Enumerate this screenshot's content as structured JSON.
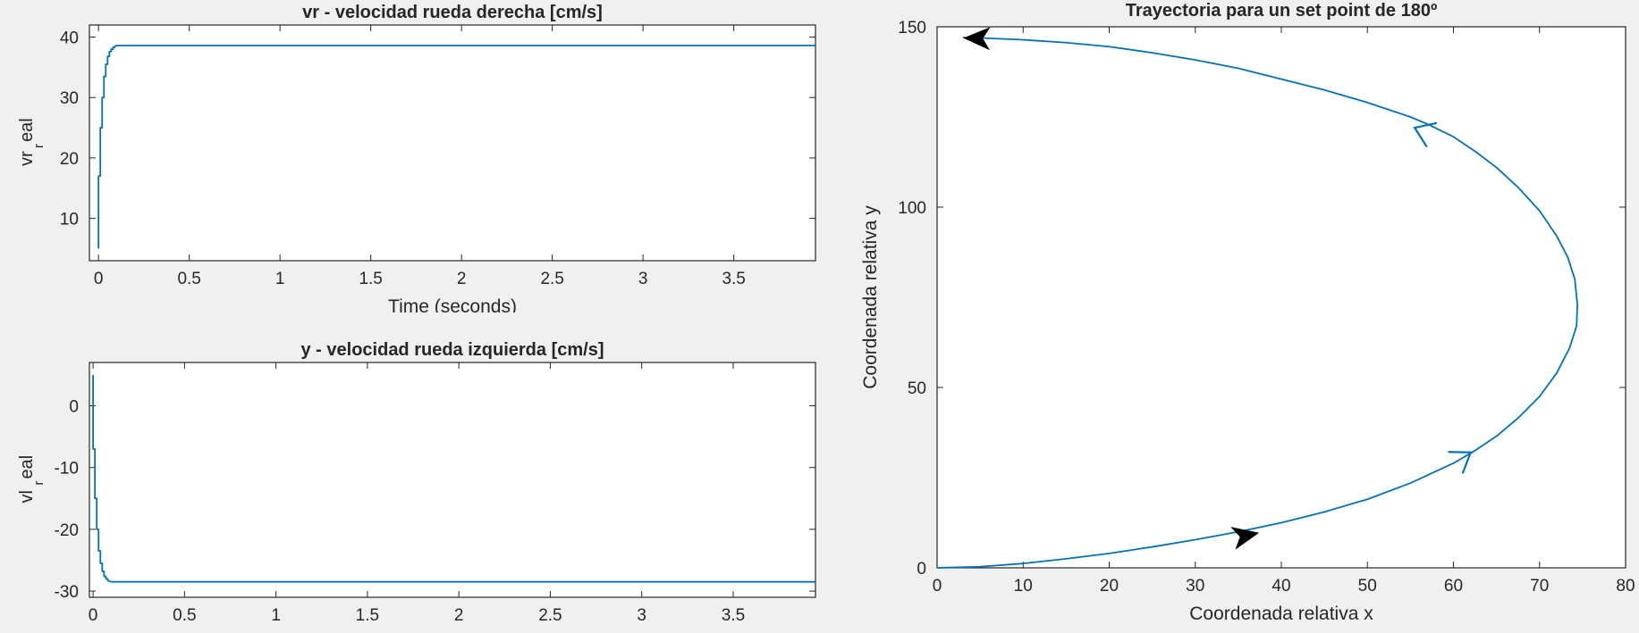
{
  "colors": {
    "line": "#0072BD",
    "arrow_black": "#000000",
    "axis": "#262626",
    "background": "#f0f0f0",
    "plot_bg": "#ffffff"
  },
  "chart_data": [
    {
      "id": "vr",
      "type": "line",
      "title": "vr - velocidad rueda derecha [cm/s]",
      "xlabel": "Time (seconds)",
      "ylabel_main": "vr",
      "ylabel_sub": "r",
      "ylabel_tail": "eal",
      "xlim": [
        -0.05,
        3.95
      ],
      "ylim": [
        3,
        42
      ],
      "xticks": [
        0,
        0.5,
        1,
        1.5,
        2,
        2.5,
        3,
        3.5
      ],
      "xtick_labels": [
        "0",
        "0.5",
        "1",
        "1.5",
        "2",
        "2.5",
        "3",
        "3.5"
      ],
      "yticks": [
        10,
        20,
        30,
        40
      ],
      "ytick_labels": [
        "10",
        "20",
        "30",
        "40"
      ],
      "grid": false,
      "series": [
        {
          "x": [
            0,
            0,
            0.01,
            0.01,
            0.02,
            0.02,
            0.03,
            0.03,
            0.04,
            0.04,
            0.05,
            0.05,
            0.06,
            0.06,
            0.07,
            0.07,
            0.08,
            0.08,
            0.09,
            0.09,
            0.1,
            0.12,
            3.95
          ],
          "y": [
            5,
            17,
            17,
            25,
            25,
            30,
            30,
            33.5,
            33.5,
            35.5,
            35.5,
            36.8,
            36.8,
            37.6,
            37.6,
            38.0,
            38.0,
            38.3,
            38.3,
            38.5,
            38.6,
            38.6,
            38.6
          ]
        }
      ]
    },
    {
      "id": "vl",
      "type": "line",
      "title": "y - velocidad rueda izquierda [cm/s]",
      "xlabel": "",
      "ylabel_main": "vl",
      "ylabel_sub": "r",
      "ylabel_tail": "eal",
      "xlim": [
        -0.02,
        3.95
      ],
      "ylim": [
        -31,
        7
      ],
      "xticks": [
        0,
        0.5,
        1,
        1.5,
        2,
        2.5,
        3,
        3.5
      ],
      "xtick_labels": [
        "0",
        "0.5",
        "1",
        "1.5",
        "2",
        "2.5",
        "3",
        "3.5"
      ],
      "yticks": [
        -30,
        -20,
        -10,
        0
      ],
      "ytick_labels": [
        "-30",
        "-20",
        "-10",
        "0"
      ],
      "grid": false,
      "series": [
        {
          "x": [
            0,
            0,
            0.01,
            0.01,
            0.02,
            0.02,
            0.03,
            0.03,
            0.04,
            0.04,
            0.05,
            0.05,
            0.06,
            0.06,
            0.07,
            0.07,
            0.08,
            0.08,
            0.1,
            0.12,
            3.95
          ],
          "y": [
            5,
            -7,
            -7,
            -15,
            -15,
            -20,
            -20,
            -23.5,
            -23.5,
            -25.5,
            -25.5,
            -26.8,
            -26.8,
            -27.6,
            -27.6,
            -28.0,
            -28.0,
            -28.3,
            -28.5,
            -28.5,
            -28.5
          ]
        }
      ]
    },
    {
      "id": "traj",
      "type": "line",
      "title": "Trayectoria para un set point de 180º",
      "xlabel": "Coordenada relativa x",
      "ylabel": "Coordenada relativa y",
      "xlim": [
        0,
        80
      ],
      "ylim": [
        0,
        150
      ],
      "xticks": [
        0,
        10,
        20,
        30,
        40,
        50,
        60,
        70,
        80
      ],
      "xtick_labels": [
        "0",
        "10",
        "20",
        "30",
        "40",
        "50",
        "60",
        "70",
        "80"
      ],
      "yticks": [
        0,
        50,
        100,
        150
      ],
      "ytick_labels": [
        "0",
        "50",
        "100",
        "150"
      ],
      "grid": false,
      "series": [
        {
          "x": [
            0,
            5,
            10,
            15,
            20,
            25,
            30,
            35,
            40,
            45,
            50,
            55,
            60,
            62.5,
            65,
            67.5,
            70,
            72,
            73.5,
            74.3,
            74.4,
            74.1,
            73.3,
            72,
            70,
            67.5,
            65,
            62.5,
            60,
            57,
            55,
            50,
            45,
            40,
            35,
            30,
            25,
            20,
            15,
            10,
            5,
            3
          ],
          "y": [
            0,
            0.3,
            1.2,
            2.5,
            4,
            5.8,
            7.8,
            10,
            12.5,
            15.5,
            19,
            23.5,
            29,
            32.5,
            36.5,
            41.5,
            47.5,
            54,
            61,
            67,
            73,
            80,
            86,
            92,
            99,
            105.5,
            111,
            115.5,
            119.5,
            123,
            125,
            129,
            132.5,
            135.5,
            138.5,
            140.8,
            142.8,
            144.5,
            145.6,
            146.4,
            146.9,
            147
          ]
        }
      ],
      "arrows": [
        {
          "x": 36,
          "y": 9,
          "color": "black",
          "style": "filled"
        },
        {
          "x": 4.5,
          "y": 146.8,
          "color": "black",
          "style": "filled"
        },
        {
          "x": 55.5,
          "y": 122,
          "color": "line",
          "style": "open"
        },
        {
          "x": 62,
          "y": 32,
          "color": "line",
          "style": "open"
        }
      ]
    }
  ]
}
